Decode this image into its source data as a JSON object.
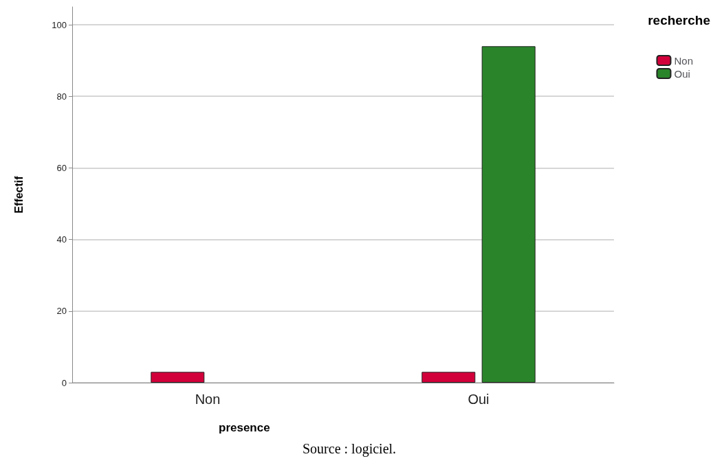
{
  "chart_data": {
    "type": "bar",
    "xlabel": "presence",
    "ylabel": "Effectif",
    "legend_title": "recherche",
    "categories": [
      "Non",
      "Oui"
    ],
    "series": [
      {
        "name": "Non",
        "color": "#d2003a",
        "values": [
          3,
          3
        ]
      },
      {
        "name": "Oui",
        "color": "#2a852a",
        "values": [
          0,
          94
        ]
      }
    ],
    "ylim": [
      0,
      105
    ],
    "yticks": [
      0,
      20,
      40,
      60,
      80,
      100
    ],
    "grid": "y",
    "legend": "top right",
    "annotations": [
      "Source : logiciel."
    ]
  }
}
